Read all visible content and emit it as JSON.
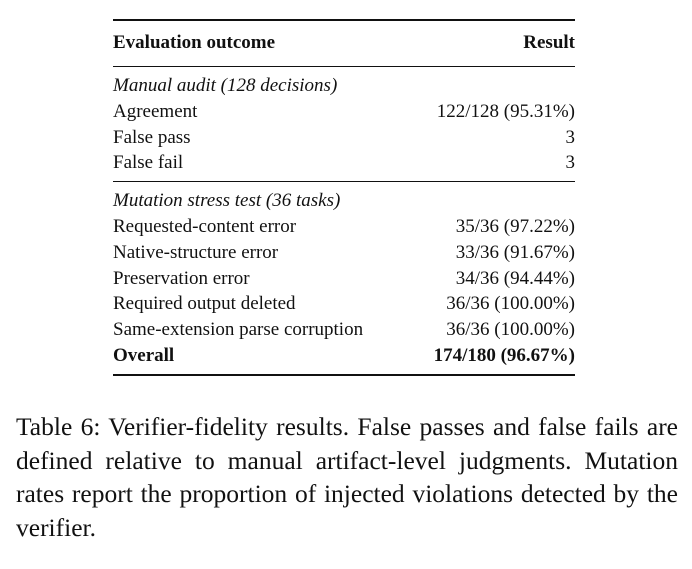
{
  "table": {
    "header": {
      "col1": "Evaluation outcome",
      "col2": "Result"
    },
    "sections": [
      {
        "title": "Manual audit (128 decisions)",
        "rows": [
          {
            "label": "Agreement",
            "value": "122/128 (95.31%)"
          },
          {
            "label": "False pass",
            "value": "3"
          },
          {
            "label": "False fail",
            "value": "3"
          }
        ]
      },
      {
        "title": "Mutation stress test (36 tasks)",
        "rows": [
          {
            "label": "Requested-content error",
            "value": "35/36 (97.22%)"
          },
          {
            "label": "Native-structure error",
            "value": "33/36 (91.67%)"
          },
          {
            "label": "Preservation error",
            "value": "34/36 (94.44%)"
          },
          {
            "label": "Required output deleted",
            "value": "36/36 (100.00%)"
          },
          {
            "label": "Same-extension parse corruption",
            "value": "36/36 (100.00%)"
          }
        ]
      }
    ],
    "overall": {
      "label": "Overall",
      "value": "174/180 (96.67%)"
    }
  },
  "caption": "Table 6: Verifier-fidelity results. False passes and false fails are defined relative to manual artifact-level judgments. Mutation rates report the proportion of injected violations detected by the verifier."
}
